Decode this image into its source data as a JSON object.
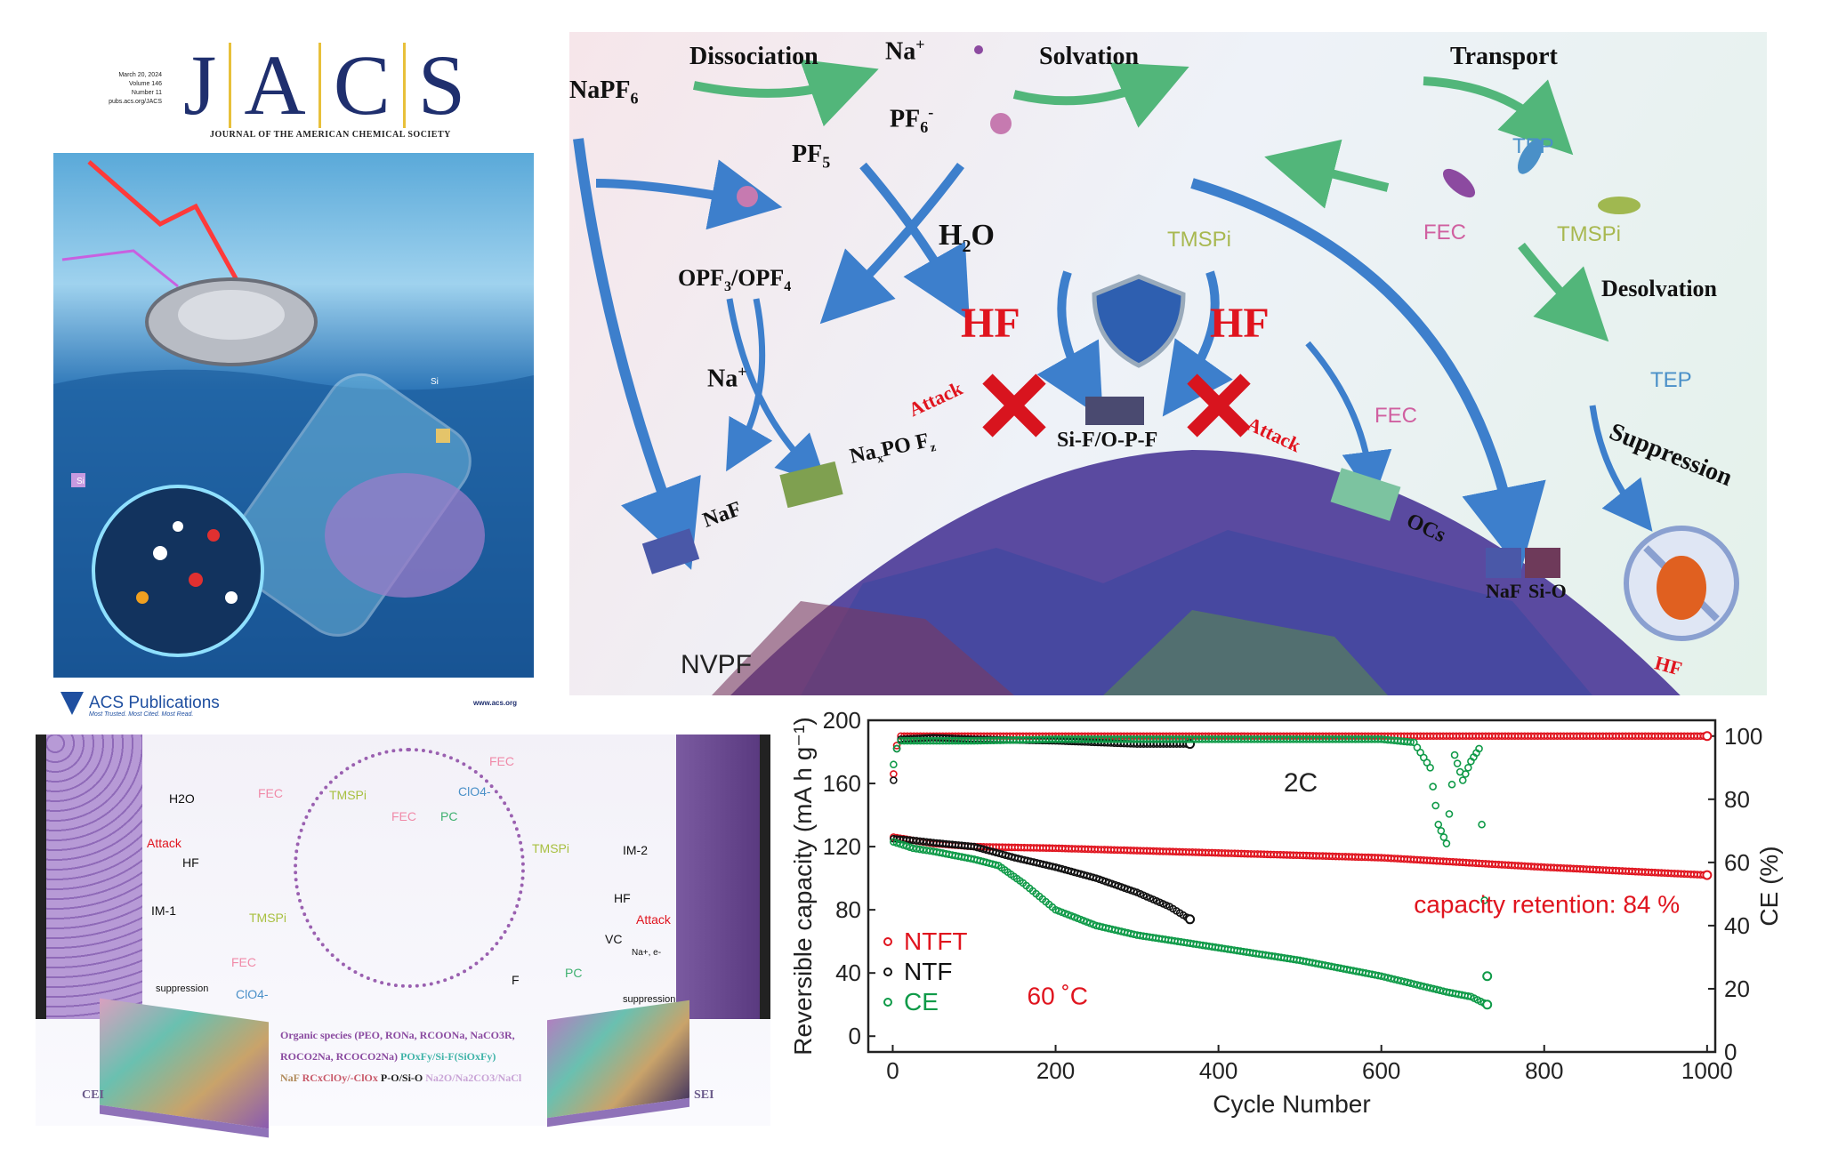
{
  "cover": {
    "date": "March 20, 2024",
    "volume": "Volume 146",
    "number": "Number 11",
    "url": "pubs.acs.org/JACS",
    "logo_letters": [
      "J",
      "A",
      "C",
      "S"
    ],
    "journal_name": "JOURNAL OF THE AMERICAN CHEMICAL SOCIETY",
    "publisher": "ACS Publications",
    "publisher_tagline": "Most Trusted. Most Cited. Most Read.",
    "publisher_url": "www.acs.org",
    "tag_labels": [
      "Si",
      "Si"
    ]
  },
  "toc": {
    "labels": {
      "napf6": "NaPF",
      "napf6_sub": "6",
      "dissociation": "Dissociation",
      "na_plus": "Na",
      "pf6": "PF",
      "pf6_sub": "6",
      "solvation": "Solvation",
      "transport": "Transport",
      "pf5": "PF",
      "pf5_sub": "5",
      "h2o": "H",
      "h2o_sub": "2",
      "h2o_o": "O",
      "opf": "OPF",
      "opf_sub1": "3",
      "opf_mid": "/OPF",
      "opf_sub2": "4",
      "na_plus2": "Na",
      "hf_left": "HF",
      "hf_right": "HF",
      "attack_left": "Attack",
      "attack_right": "Attack",
      "tmspi": "TMSPi",
      "fec_top": "FEC",
      "tep_top": "TEP",
      "tmspi_right": "TMSPi",
      "desolvation": "Desolvation",
      "tep_right": "TEP",
      "fec_mid": "FEC",
      "suppression": "Suppression",
      "naxpoyfz": "Na",
      "naxpoyfz_tail": "PO F",
      "naf_left": "NaF",
      "sif": "Si-F/O-P-F",
      "ocs": "OCs",
      "naf_right": "NaF",
      "sio": "Si-O",
      "nvpf": "NVPF",
      "hf_corner": "HF"
    },
    "colors": {
      "hf": "#e0141e",
      "arrow_blue": "#3d7fcc",
      "arrow_green": "#52b67a",
      "naf": "#4a58a8",
      "naxpoyfz": "#7fa050",
      "sio": "#6e3a5a",
      "ocs": "#7cc3a0"
    }
  },
  "schematic": {
    "labels": {
      "h2o": "H2O",
      "fec_1": "FEC",
      "attack_left": "Attack",
      "hf_left": "HF",
      "im1": "IM-1",
      "tmspi_left": "TMSPi",
      "fec_2": "FEC",
      "suppression_left": "suppression",
      "clo4_bottom": "ClO4-",
      "tmspi_center": "TMSPi",
      "fec_center": "FEC",
      "pc_center": "PC",
      "clo4_center": "ClO4-",
      "fec_right": "FEC",
      "tmspi_right": "TMSPi",
      "im2": "IM-2",
      "hf_right": "HF",
      "attack_right": "Attack",
      "vc": "VC",
      "na_e": "Na+, e-",
      "f": "F",
      "pc_right": "PC",
      "suppression_right": "suppression",
      "cei": "CEI",
      "sei": "SEI"
    },
    "legend_lines": [
      [
        {
          "text": "Organic species (PEO, RONa, RCOONa, NaCO3R,",
          "color": "#8a4aa0"
        }
      ],
      [
        {
          "text": "ROCO2Na, RCOCO2Na)",
          "color": "#8a4aa0"
        },
        {
          "text": "  POxFy/Si-F(SiOxFy)",
          "color": "#3fb3a8"
        }
      ],
      [
        {
          "text": "NaF ",
          "color": "#b08a5a"
        },
        {
          "text": "RCxClOy/-ClOx ",
          "color": "#c85a6a"
        },
        {
          "text": "P-O/Si-O ",
          "color": "#222222"
        },
        {
          "text": "Na2O/Na2CO3/NaCl",
          "color": "#c9a4d6"
        }
      ]
    ]
  },
  "chart_data": {
    "type": "scatter",
    "xlabel": "Cycle Number",
    "ylabel": "Reversible capacity (mA h g⁻¹)",
    "y2label": "CE (%)",
    "xlim": [
      -30,
      1010
    ],
    "ylim": [
      -10,
      200
    ],
    "y2lim": [
      0,
      105
    ],
    "xticks": [
      0,
      200,
      400,
      600,
      800,
      1000
    ],
    "yticks": [
      0,
      40,
      80,
      120,
      160,
      200
    ],
    "y2ticks": [
      0,
      20,
      40,
      60,
      80,
      100
    ],
    "grid": false,
    "legend_placement": "lower-left",
    "legend": [
      {
        "name": "NTFT",
        "color": "#e0141e"
      },
      {
        "name": "NTF",
        "color": "#111111"
      },
      {
        "name": "CE",
        "color": "#0f9a48"
      }
    ],
    "annotations": {
      "rate": "2C",
      "retention": "capacity retention: 84 %",
      "temperature": "60 ˚C"
    },
    "series": [
      {
        "name": "NTFT",
        "axis": "left",
        "color": "#e0141e",
        "x": [
          1,
          25,
          50,
          100,
          150,
          200,
          300,
          400,
          500,
          600,
          700,
          800,
          900,
          1000
        ],
        "y": [
          126,
          124,
          122,
          120,
          119.5,
          119,
          117.5,
          116,
          114.5,
          113,
          110,
          107,
          104.5,
          102
        ]
      },
      {
        "name": "NTF",
        "axis": "left",
        "color": "#111111",
        "x": [
          1,
          25,
          50,
          100,
          150,
          200,
          250,
          300,
          340,
          365
        ],
        "y": [
          125,
          124,
          122.5,
          120,
          113,
          107,
          100,
          91,
          82,
          74
        ]
      },
      {
        "name": "CE",
        "axis": "left",
        "color": "#0f9a48",
        "x": [
          1,
          25,
          50,
          100,
          130,
          160,
          200,
          250,
          300,
          350,
          400,
          450,
          500,
          550,
          600,
          640,
          680,
          710,
          730
        ],
        "y": [
          123,
          119,
          117,
          112,
          108,
          97,
          80,
          70,
          64,
          60,
          56,
          52,
          48,
          43,
          38,
          33,
          28,
          25,
          20
        ]
      },
      {
        "name": "NTFT",
        "axis": "right",
        "color": "#e0141e",
        "x": [
          1,
          5,
          10,
          50,
          100,
          200,
          400,
          600,
          800,
          1000
        ],
        "y": [
          88,
          97,
          100,
          100,
          100,
          100,
          100,
          100,
          100,
          100
        ]
      },
      {
        "name": "NTF",
        "axis": "right",
        "color": "#111111",
        "x": [
          1,
          5,
          10,
          50,
          100,
          200,
          300,
          365
        ],
        "y": [
          86,
          96,
          99,
          99.5,
          99,
          98.5,
          97.5,
          97.5
        ]
      },
      {
        "name": "CE",
        "axis": "right",
        "color": "#0f9a48",
        "x": [
          1,
          5,
          10,
          50,
          100,
          200,
          400,
          600,
          640,
          660,
          670,
          680,
          690,
          700,
          710,
          720,
          730
        ],
        "y": [
          91,
          96,
          98.5,
          98.5,
          98.5,
          99,
          99,
          99,
          98,
          90,
          72,
          66,
          94,
          86,
          92,
          96,
          24
        ]
      }
    ]
  }
}
